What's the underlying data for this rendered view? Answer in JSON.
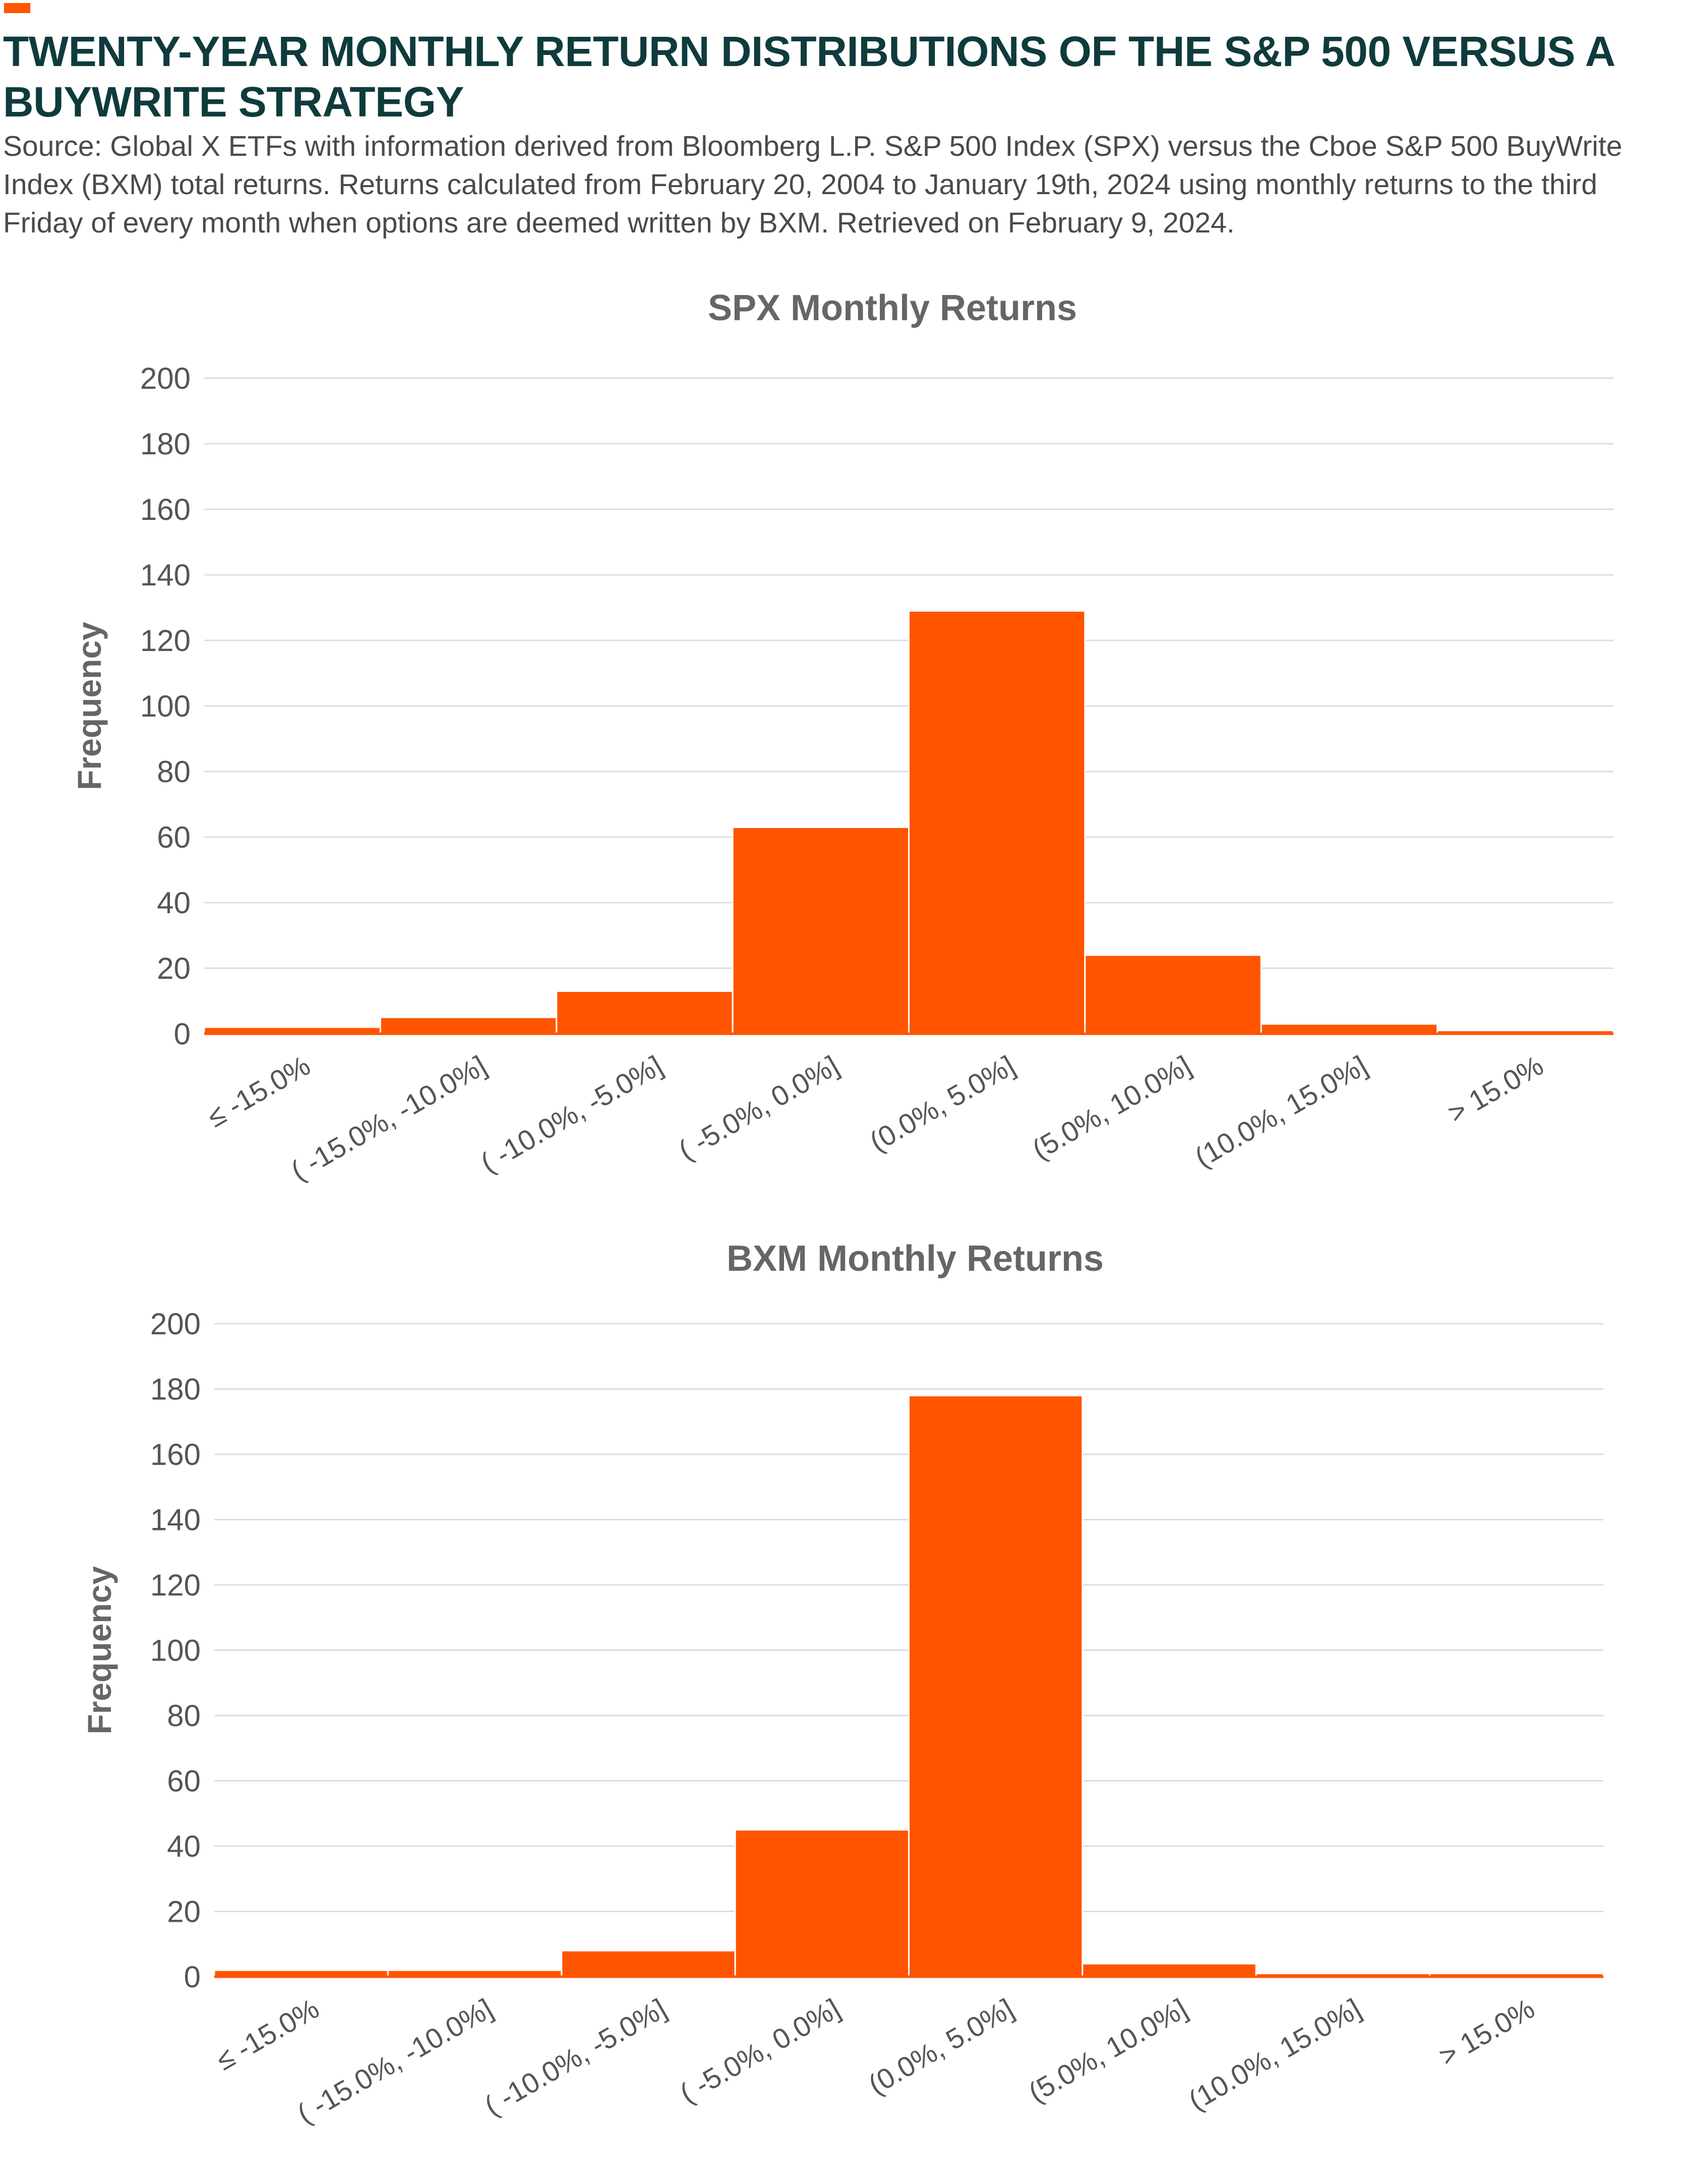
{
  "page": {
    "title": "TWENTY-YEAR MONTHLY RETURN DISTRIBUTIONS OF THE S&P 500 VERSUS A BUYWRITE STRATEGY",
    "source": "Source: Global X ETFs with information derived from Bloomberg L.P. S&P 500 Index (SPX) versus the Cboe S&P 500 BuyWrite Index (BXM) total returns. Returns calculated from February 20, 2004 to January 19th, 2024 using monthly returns to the third Friday of every month when options are deemed written by BXM. Retrieved on February 9, 2024.",
    "accent_color": "#ff5500",
    "bar_color": "#ff5500",
    "title_color": "#0f3b3d",
    "grid_color": "#dddddd"
  },
  "chart_data": [
    {
      "type": "bar",
      "title": "SPX Monthly Returns",
      "xlabel": "",
      "ylabel": "Frequency",
      "categories": [
        "≤ -15.0%",
        "( -15.0%, -10.0%]",
        "( -10.0%, -5.0%]",
        "( -5.0%, 0.0%]",
        "(0.0%, 5.0%]",
        "(5.0%, 10.0%]",
        "(10.0%, 15.0%]",
        "> 15.0%"
      ],
      "values": [
        2,
        5,
        13,
        63,
        129,
        24,
        3,
        1
      ],
      "ylim": [
        0,
        200
      ],
      "yticks": [
        "0",
        "20",
        "40",
        "60",
        "80",
        "100",
        "120",
        "140",
        "160",
        "180",
        "200"
      ],
      "grid": true
    },
    {
      "type": "bar",
      "title": "BXM Monthly Returns",
      "xlabel": "",
      "ylabel": "Frequency",
      "categories": [
        "≤ -15.0%",
        "( -15.0%, -10.0%]",
        "( -10.0%, -5.0%]",
        "( -5.0%, 0.0%]",
        "(0.0%, 5.0%]",
        "(5.0%, 10.0%]",
        "(10.0%, 15.0%]",
        "> 15.0%"
      ],
      "values": [
        2,
        2,
        8,
        45,
        178,
        4,
        1,
        1
      ],
      "ylim": [
        0,
        200
      ],
      "yticks": [
        "0",
        "20",
        "40",
        "60",
        "80",
        "100",
        "120",
        "140",
        "160",
        "180",
        "200"
      ],
      "grid": true
    }
  ]
}
